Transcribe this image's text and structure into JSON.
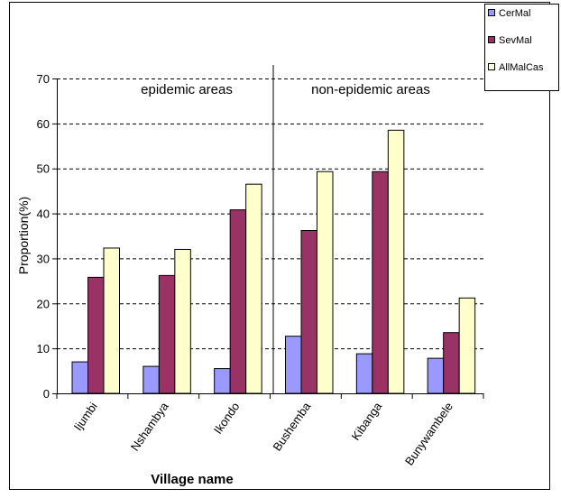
{
  "chart_data": {
    "type": "bar",
    "xlabel": "Village name",
    "ylabel": "Proportion(%)",
    "ylim": [
      0,
      70
    ],
    "yticks": [
      0,
      10,
      20,
      30,
      40,
      50,
      60,
      70
    ],
    "grid": true,
    "legend_position": "top-right",
    "categories": [
      "Ijumbi",
      "Nshambya",
      "Ikondo",
      "Bushemba",
      "Kibanga",
      "Bunywambele"
    ],
    "series": [
      {
        "name": "CerMal",
        "color": "#9999ff",
        "values": [
          7.0,
          6.0,
          5.5,
          12.7,
          8.8,
          7.8
        ]
      },
      {
        "name": "SevMal",
        "color": "#993366",
        "values": [
          25.8,
          26.2,
          40.8,
          36.2,
          49.3,
          13.5
        ]
      },
      {
        "name": "AllMalCas",
        "color": "#ffffcc",
        "values": [
          32.3,
          32.0,
          46.5,
          49.3,
          58.5,
          21.2
        ]
      }
    ],
    "annotations": [
      {
        "text": "epidemic areas",
        "group": "left"
      },
      {
        "text": "non-epidemic areas",
        "group": "right"
      }
    ]
  }
}
